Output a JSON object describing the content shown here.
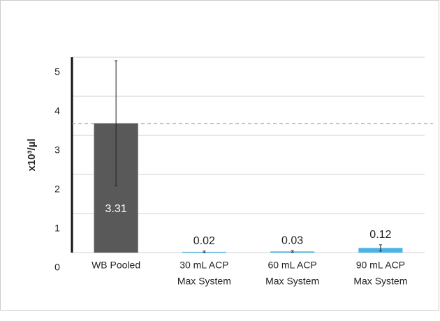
{
  "chart_data": {
    "type": "bar",
    "y_label": "x10³/µl",
    "categories": [
      [
        "WB Pooled"
      ],
      [
        "30 mL ACP",
        "Max System"
      ],
      [
        "60 mL ACP",
        "Max System"
      ],
      [
        "90 mL ACP",
        "Max System"
      ]
    ],
    "values": [
      3.31,
      0.02,
      0.03,
      0.12
    ],
    "errors": [
      1.6,
      0.02,
      0.02,
      0.08
    ],
    "colors": [
      "#595959",
      "#4bb3e6",
      "#4bb3e6",
      "#4bb3e6"
    ],
    "reference_line": 3.3,
    "ylim": [
      0,
      5
    ],
    "yticks": [
      0,
      1,
      2,
      3,
      4,
      5
    ],
    "grid": true
  }
}
